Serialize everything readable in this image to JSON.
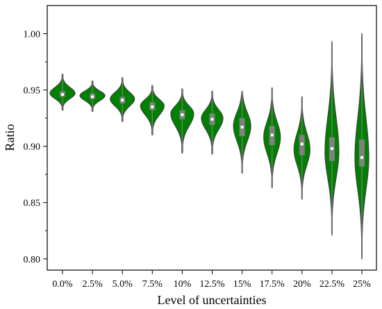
{
  "chart_data": {
    "type": "violin",
    "title": "",
    "xlabel": "Level of uncertainties",
    "ylabel": "Ratio",
    "ylim": [
      0.79,
      1.025
    ],
    "yticks": [
      "0.80",
      "0.85",
      "0.90",
      "0.95",
      "1.00"
    ],
    "grid": false,
    "colors": {
      "fill": "#008000",
      "outline": "#404040",
      "box": "#808080",
      "median": "#ffffff"
    },
    "categories": [
      "0.0%",
      "2.5%",
      "5.0%",
      "7.5%",
      "10%",
      "12.5%",
      "15%",
      "17.5%",
      "20%",
      "22.5%",
      "25%"
    ],
    "series": [
      {
        "category": "0.0%",
        "min": 0.932,
        "max": 0.964,
        "q1": 0.944,
        "median": 0.946,
        "q3": 0.949,
        "peak": 0.947
      },
      {
        "category": "2.5%",
        "min": 0.931,
        "max": 0.958,
        "q1": 0.942,
        "median": 0.944,
        "q3": 0.947,
        "peak": 0.945
      },
      {
        "category": "5.0%",
        "min": 0.922,
        "max": 0.961,
        "q1": 0.938,
        "median": 0.941,
        "q3": 0.944,
        "peak": 0.942
      },
      {
        "category": "7.5%",
        "min": 0.91,
        "max": 0.954,
        "q1": 0.932,
        "median": 0.935,
        "q3": 0.939,
        "peak": 0.936
      },
      {
        "category": "10%",
        "min": 0.894,
        "max": 0.951,
        "q1": 0.924,
        "median": 0.928,
        "q3": 0.932,
        "peak": 0.929
      },
      {
        "category": "12.5%",
        "min": 0.893,
        "max": 0.949,
        "q1": 0.919,
        "median": 0.924,
        "q3": 0.929,
        "peak": 0.925
      },
      {
        "category": "15%",
        "min": 0.876,
        "max": 0.949,
        "q1": 0.909,
        "median": 0.917,
        "q3": 0.925,
        "peak": 0.918
      },
      {
        "category": "17.5%",
        "min": 0.863,
        "max": 0.952,
        "q1": 0.901,
        "median": 0.91,
        "q3": 0.918,
        "peak": 0.908
      },
      {
        "category": "20%",
        "min": 0.853,
        "max": 0.944,
        "q1": 0.892,
        "median": 0.902,
        "q3": 0.91,
        "peak": 0.897
      },
      {
        "category": "22.5%",
        "min": 0.821,
        "max": 0.993,
        "q1": 0.887,
        "median": 0.898,
        "q3": 0.908,
        "peak": 0.895
      },
      {
        "category": "25%",
        "min": 0.8,
        "max": 1.0,
        "q1": 0.882,
        "median": 0.89,
        "q3": 0.906,
        "peak": 0.89
      }
    ]
  }
}
